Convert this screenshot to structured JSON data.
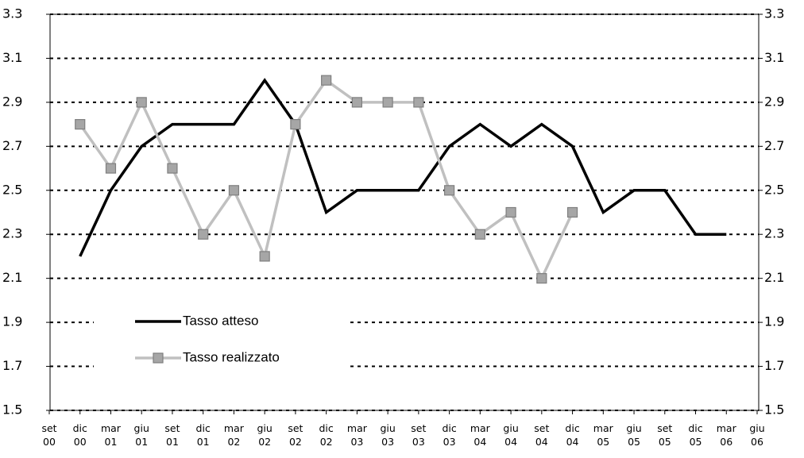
{
  "chart_data": {
    "type": "line",
    "categories": [
      "set\n00",
      "dic\n00",
      "mar\n01",
      "giu\n01",
      "set\n01",
      "dic\n01",
      "mar\n02",
      "giu\n02",
      "set\n02",
      "dic\n02",
      "mar\n03",
      "giu\n03",
      "set\n03",
      "dic\n03",
      "mar\n04",
      "giu\n04",
      "set\n04",
      "dic\n04",
      "mar\n05",
      "giu\n05",
      "set\n05",
      "dic\n05",
      "mar\n06",
      "giu\n06"
    ],
    "series": [
      {
        "name": "Tasso atteso",
        "color": "#000000",
        "values": [
          null,
          2.2,
          2.5,
          2.7,
          2.8,
          2.8,
          2.8,
          3.0,
          2.8,
          2.4,
          2.5,
          2.5,
          2.5,
          2.7,
          2.8,
          2.7,
          2.8,
          2.7,
          2.4,
          2.5,
          2.5,
          2.3,
          2.3,
          null
        ]
      },
      {
        "name": "Tasso realizzato",
        "color": "#c0c0c0",
        "marker": "square",
        "values": [
          null,
          2.8,
          2.6,
          2.9,
          2.6,
          2.3,
          2.5,
          2.2,
          2.8,
          3.0,
          2.9,
          2.9,
          2.9,
          2.5,
          2.3,
          2.4,
          2.1,
          2.4,
          null,
          null,
          null,
          null,
          null,
          null
        ]
      }
    ],
    "ylim": [
      1.5,
      3.3
    ],
    "yticks": [
      1.5,
      1.7,
      1.9,
      2.1,
      2.3,
      2.5,
      2.7,
      2.9,
      3.1,
      3.3
    ],
    "y2lim": [
      1.5,
      3.3
    ],
    "y2ticks": [
      1.5,
      1.7,
      1.9,
      2.1,
      2.3,
      2.5,
      2.7,
      2.9,
      3.1,
      3.3
    ],
    "grid": true
  }
}
